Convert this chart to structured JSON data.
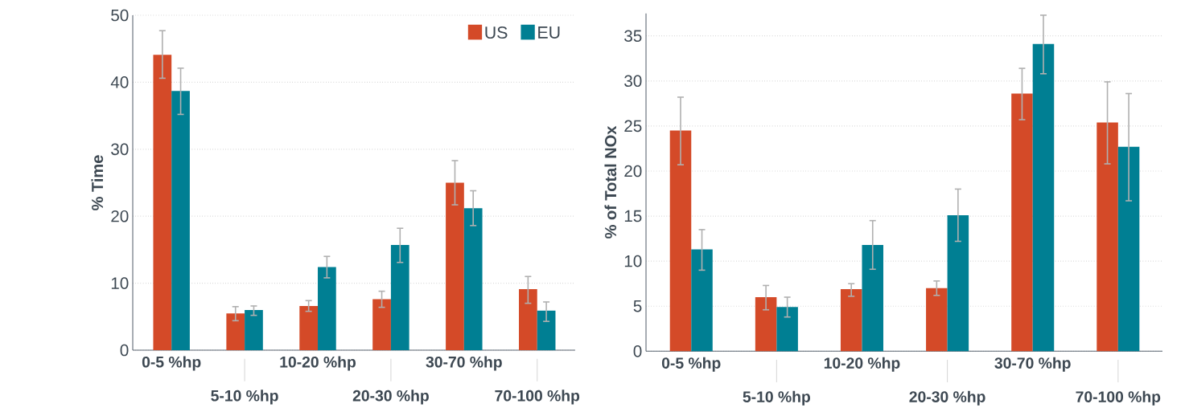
{
  "chart_data": [
    {
      "type": "bar",
      "ylabel": "% Time",
      "categories": [
        "0-5 %hp",
        "5-10 %hp",
        "10-20 %hp",
        "20-30 %hp",
        "30-70 %hp",
        "70-100 %hp"
      ],
      "series": [
        {
          "name": "US",
          "color": "#d44a28",
          "values": [
            44.1,
            5.5,
            6.6,
            7.6,
            25.0,
            9.1
          ],
          "errors": [
            [
              40.6,
              47.7
            ],
            [
              4.4,
              6.5
            ],
            [
              5.8,
              7.4
            ],
            [
              6.4,
              8.8
            ],
            [
              21.7,
              28.3
            ],
            [
              7.0,
              11.0
            ]
          ]
        },
        {
          "name": "EU",
          "color": "#007f93",
          "values": [
            38.7,
            6.0,
            12.4,
            15.7,
            21.2,
            5.9
          ],
          "errors": [
            [
              35.2,
              42.1
            ],
            [
              5.2,
              6.6
            ],
            [
              10.8,
              14.0
            ],
            [
              13.1,
              18.2
            ],
            [
              18.6,
              23.8
            ],
            [
              4.3,
              7.2
            ]
          ]
        }
      ],
      "ylim": [
        0,
        50
      ],
      "yticks": [
        0,
        10,
        20,
        30,
        40,
        50
      ],
      "grid": "y",
      "legend": "top right"
    },
    {
      "type": "bar",
      "ylabel": "% of Total NOx",
      "categories": [
        "0-5 %hp",
        "5-10 %hp",
        "10-20 %hp",
        "20-30 %hp",
        "30-70 %hp",
        "70-100 %hp"
      ],
      "series": [
        {
          "color": "#d44a28",
          "values": [
            24.5,
            6.0,
            6.9,
            7.0,
            28.6,
            25.4
          ],
          "errors": [
            [
              20.7,
              28.2
            ],
            [
              4.6,
              7.3
            ],
            [
              6.1,
              7.5
            ],
            [
              6.2,
              7.8
            ],
            [
              25.7,
              31.4
            ],
            [
              20.8,
              29.9
            ]
          ]
        },
        {
          "color": "#007f93",
          "values": [
            11.3,
            4.9,
            11.8,
            15.1,
            34.1,
            22.7
          ],
          "errors": [
            [
              9.0,
              13.5
            ],
            [
              3.8,
              6.0
            ],
            [
              9.1,
              14.5
            ],
            [
              12.2,
              18.0
            ],
            [
              30.8,
              37.3
            ],
            [
              16.7,
              28.6
            ]
          ]
        }
      ],
      "ylim": [
        0,
        37.5
      ],
      "yticks": [
        0,
        5,
        10,
        15,
        20,
        25,
        30,
        35
      ],
      "grid": "y"
    }
  ]
}
